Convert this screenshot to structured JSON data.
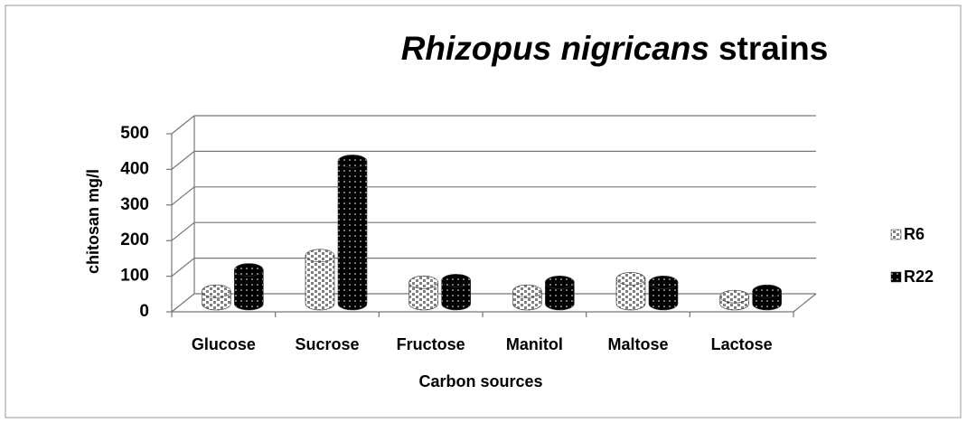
{
  "chart_data": {
    "type": "bar3d",
    "title": [
      "Rhizopus nigricans",
      "strains"
    ],
    "x_label": "Carbon sources",
    "y_label": "chitosan mg/l",
    "categories": [
      "Glucose",
      "Sucrose",
      "Fructose",
      "Manitol",
      "Maltose",
      "Lactose"
    ],
    "series": [
      {
        "name": "R6",
        "color": "#808080",
        "values": [
          35,
          135,
          60,
          35,
          70,
          20
        ]
      },
      {
        "name": "R22",
        "color": "#000000",
        "values": [
          95,
          400,
          65,
          60,
          60,
          35
        ]
      }
    ],
    "ylim": [
      0,
      500
    ],
    "yticks": [
      0,
      100,
      200,
      300,
      400,
      500
    ],
    "grid": true,
    "legend": "right"
  }
}
